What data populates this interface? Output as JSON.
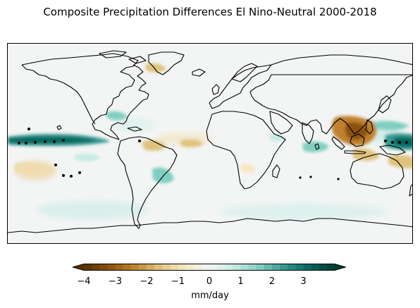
{
  "figure": {
    "title": "Composite Precipitation Differences El Nino-Neutral 2000-2018"
  },
  "map": {
    "projection": "PlateCarree",
    "variable": "precipitation difference",
    "ocean_background_color": "#f3f5f4",
    "coastline_color": "#000000",
    "significance_marker": "dot-stipple"
  },
  "colorbar": {
    "label": "mm/day",
    "vmin": -4,
    "vmax": 4,
    "ticks": [
      "−4",
      "−3",
      "−2",
      "−1",
      "0",
      "1",
      "2",
      "3"
    ],
    "tick_values": [
      -4,
      -3,
      -2,
      -1,
      0,
      1,
      2,
      3
    ],
    "extend": "both",
    "colormap": "BrBG",
    "stops": [
      "#543005",
      "#8c510a",
      "#bf812d",
      "#dfc27d",
      "#f6e8c3",
      "#f5f5f5",
      "#c7eae5",
      "#80cdc1",
      "#35978f",
      "#01665e",
      "#003c30"
    ]
  }
}
